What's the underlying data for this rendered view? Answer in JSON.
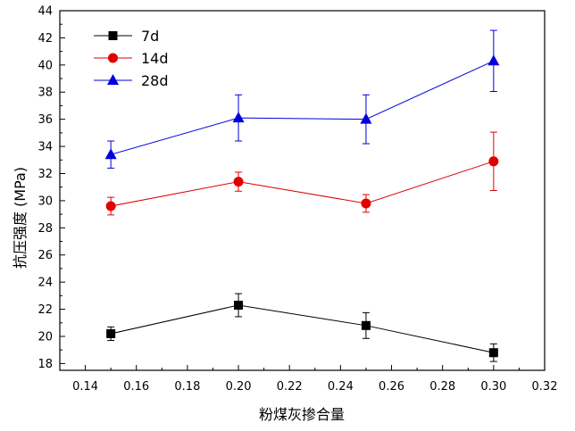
{
  "chart_data": {
    "type": "line",
    "title": "",
    "xlabel": "粉煤灰掺合量",
    "ylabel": "抗压强度 (MPa)",
    "xlim": [
      0.13,
      0.32
    ],
    "ylim": [
      17.5,
      44
    ],
    "xticks": [
      0.14,
      0.16,
      0.18,
      0.2,
      0.22,
      0.24,
      0.26,
      0.28,
      0.3,
      0.32
    ],
    "xtick_labels": [
      "0.14",
      "0.16",
      "0.18",
      "0.20",
      "0.22",
      "0.24",
      "0.26",
      "0.28",
      "0.30",
      "0.32"
    ],
    "yticks": [
      18,
      20,
      22,
      24,
      26,
      28,
      30,
      32,
      34,
      36,
      38,
      40,
      42,
      44
    ],
    "ytick_labels": [
      "18",
      "20",
      "22",
      "24",
      "26",
      "28",
      "30",
      "32",
      "34",
      "36",
      "38",
      "40",
      "42",
      "44"
    ],
    "grid": false,
    "legend_position": "top-left",
    "x": [
      0.15,
      0.2,
      0.25,
      0.3
    ],
    "series": [
      {
        "name": "7d",
        "color": "#000000",
        "marker": "square",
        "values": [
          20.2,
          22.3,
          20.8,
          18.8
        ],
        "error": [
          0.5,
          0.85,
          0.95,
          0.65
        ]
      },
      {
        "name": "14d",
        "color": "#e00000",
        "marker": "circle",
        "values": [
          29.6,
          31.4,
          29.8,
          32.9
        ],
        "error": [
          0.65,
          0.7,
          0.65,
          2.15
        ]
      },
      {
        "name": "28d",
        "color": "#0000dd",
        "marker": "triangle",
        "values": [
          33.4,
          36.1,
          36.0,
          40.3
        ],
        "error": [
          1.0,
          1.7,
          1.8,
          2.25
        ]
      }
    ]
  }
}
